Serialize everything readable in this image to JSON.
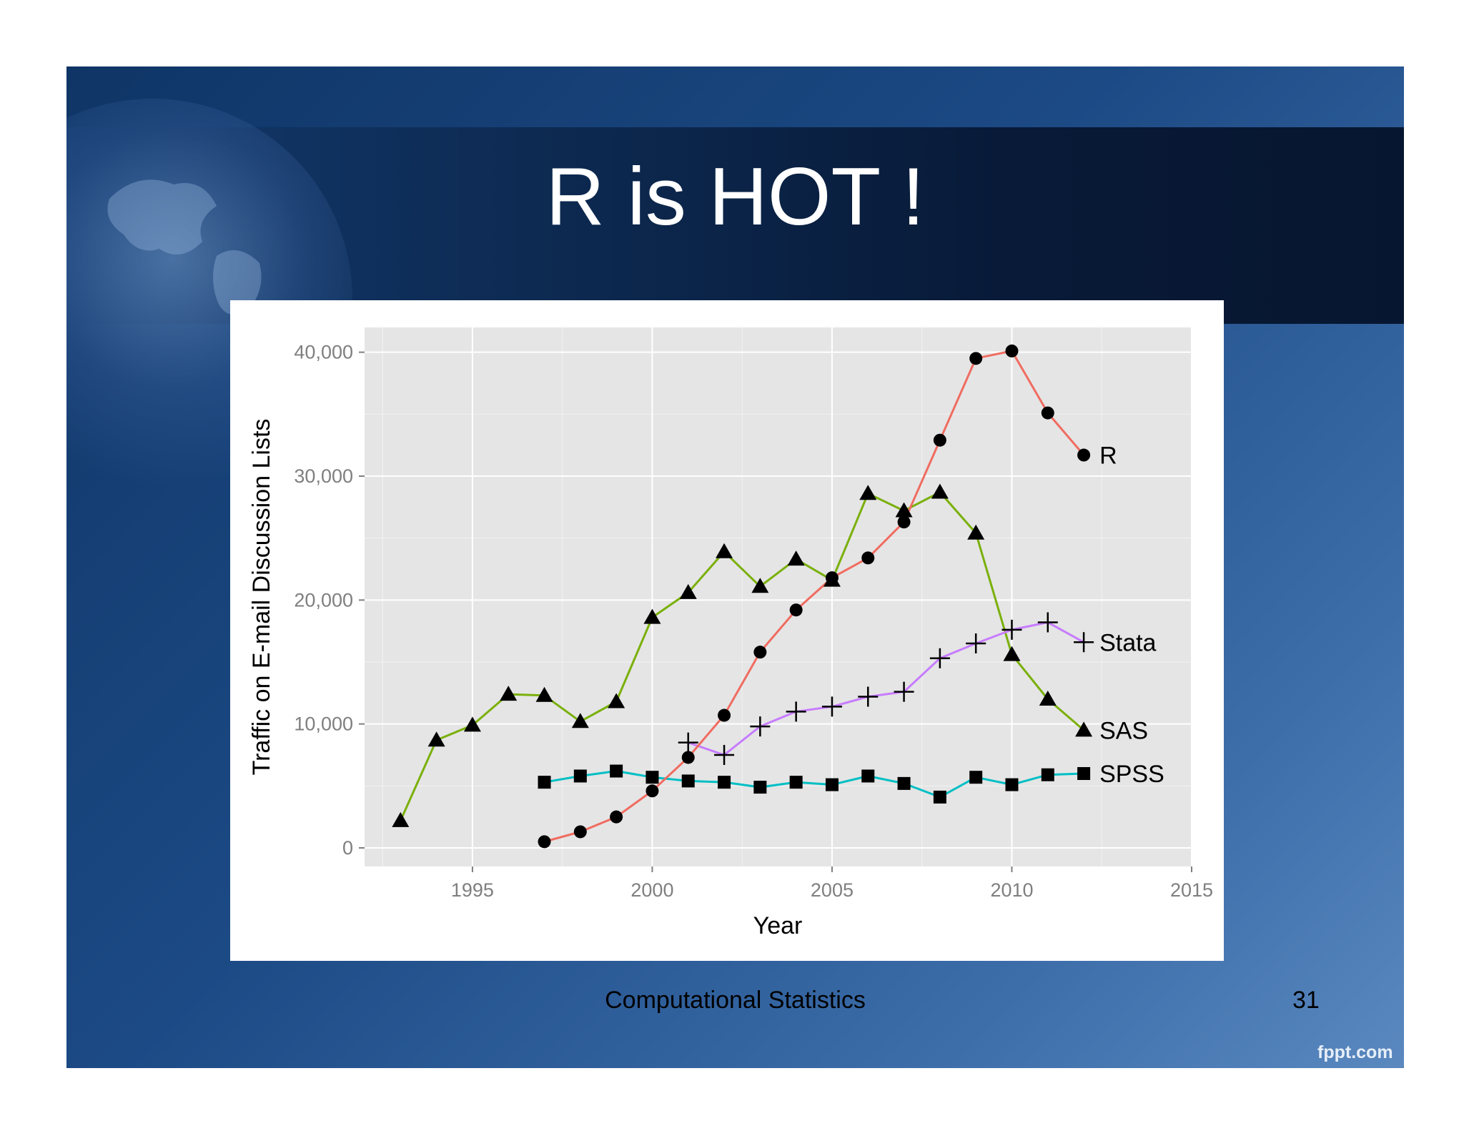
{
  "slide": {
    "title": "R is HOT !",
    "footer": "Computational Statistics",
    "page_number": "31",
    "watermark": "fppt.com"
  },
  "colors": {
    "R": "#f06c61",
    "SAS": "#7ab00a",
    "Stata": "#c77cff",
    "SPSS": "#00bfc4",
    "panel": "#e5e5e5",
    "grid": "#ffffff"
  },
  "chart_data": {
    "type": "line",
    "xlabel": "Year",
    "ylabel": "Traffic on E-mail Discussion Lists",
    "xlim": [
      1992,
      2015
    ],
    "ylim": [
      -1500,
      42000
    ],
    "x_ticks": [
      1995,
      2000,
      2005,
      2010,
      2015
    ],
    "x_tick_labels": [
      "1995",
      "2000",
      "2005",
      "2010",
      "2015"
    ],
    "y_ticks": [
      0,
      10000,
      20000,
      30000,
      40000
    ],
    "y_tick_labels": [
      "0",
      "10,000",
      "20,000",
      "30,000",
      "40,000"
    ],
    "grid": true,
    "legend": "direct labels at line ends",
    "series": [
      {
        "name": "R",
        "marker": "circle",
        "x": [
          1997,
          1998,
          1999,
          2000,
          2001,
          2002,
          2003,
          2004,
          2005,
          2006,
          2007,
          2008,
          2009,
          2010,
          2011,
          2012
        ],
        "values": [
          500,
          1300,
          2500,
          4600,
          7300,
          10700,
          15800,
          19200,
          21800,
          23400,
          26300,
          32900,
          39500,
          40100,
          35100,
          31700
        ]
      },
      {
        "name": "SAS",
        "marker": "triangle",
        "x": [
          1993,
          1994,
          1995,
          1996,
          1997,
          1998,
          1999,
          2000,
          2001,
          2002,
          2003,
          2004,
          2005,
          2006,
          2007,
          2008,
          2009,
          2010,
          2011,
          2012
        ],
        "values": [
          2200,
          8700,
          9900,
          12400,
          12300,
          10200,
          11800,
          18600,
          20600,
          23900,
          21100,
          23300,
          21600,
          28600,
          27200,
          28700,
          25400,
          15600,
          12000,
          9500
        ]
      },
      {
        "name": "Stata",
        "marker": "plus",
        "x": [
          2001,
          2002,
          2003,
          2004,
          2005,
          2006,
          2007,
          2008,
          2009,
          2010,
          2011,
          2012
        ],
        "values": [
          8500,
          7500,
          9800,
          11000,
          11400,
          12200,
          12600,
          15300,
          16500,
          17600,
          18200,
          16600
        ]
      },
      {
        "name": "SPSS",
        "marker": "square",
        "x": [
          1997,
          1998,
          1999,
          2000,
          2001,
          2002,
          2003,
          2004,
          2005,
          2006,
          2007,
          2008,
          2009,
          2010,
          2011,
          2012
        ],
        "values": [
          5300,
          5800,
          6200,
          5700,
          5400,
          5300,
          4900,
          5300,
          5100,
          5800,
          5200,
          4100,
          5700,
          5100,
          5900,
          6000
        ]
      }
    ]
  }
}
